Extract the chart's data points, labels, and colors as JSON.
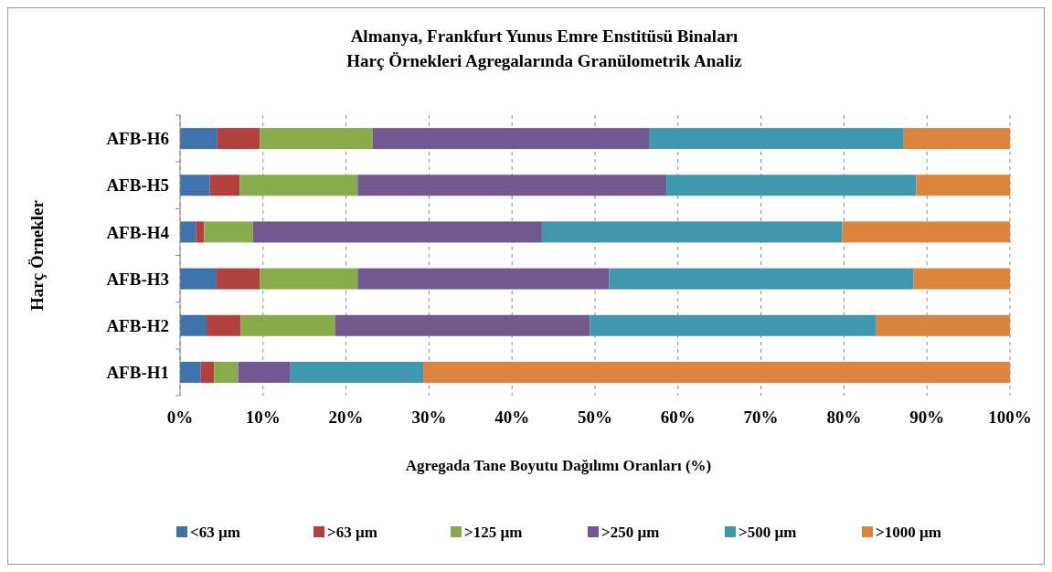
{
  "chart_data": {
    "type": "bar",
    "orientation": "horizontal",
    "stacked": true,
    "title": "Almanya, Frankfurt Yunus Emre Enstitüsü Binaları\nHarç Örnekleri Agregalarında Granülometrik Analiz",
    "xlabel": "Agregada Tane Boyutu Dağılımı  Oranları (%)",
    "ylabel": "Harç Örnekler",
    "categories": [
      "AFB-H6",
      "AFB-H5",
      "AFB-H4",
      "AFB-H3",
      "AFB-H2",
      "AFB-H1"
    ],
    "xlim": [
      0,
      100
    ],
    "xticks": [
      {
        "value": 0,
        "label": "0%"
      },
      {
        "value": 10,
        "label": "10%"
      },
      {
        "value": 20,
        "label": "20%"
      },
      {
        "value": 30,
        "label": "30%"
      },
      {
        "value": 40,
        "label": "40%"
      },
      {
        "value": 50,
        "label": "50%"
      },
      {
        "value": 60,
        "label": "60%"
      },
      {
        "value": 70,
        "label": "70%"
      },
      {
        "value": 80,
        "label": "80%"
      },
      {
        "value": 90,
        "label": "90%"
      },
      {
        "value": 100,
        "label": "100%"
      }
    ],
    "grid": "x",
    "legend": "bottom",
    "series": [
      {
        "name": "<63 µm",
        "color": "#3f72ab",
        "values": [
          4.5,
          3.6,
          1.9,
          4.4,
          3.2,
          2.5
        ]
      },
      {
        "name": ">63 µm",
        "color": "#b0413e",
        "values": [
          5.1,
          3.6,
          1.0,
          5.2,
          4.1,
          1.6
        ]
      },
      {
        "name": ">125 µm",
        "color": "#8aab4c",
        "values": [
          13.6,
          14.2,
          5.9,
          11.8,
          11.4,
          2.9
        ]
      },
      {
        "name": ">250 µm",
        "color": "#71588f",
        "values": [
          33.3,
          37.2,
          34.8,
          30.3,
          30.7,
          6.3
        ]
      },
      {
        "name": ">500 µm",
        "color": "#4197ae",
        "values": [
          30.7,
          30.1,
          36.2,
          36.7,
          34.5,
          16.0
        ]
      },
      {
        "name": ">1000 µm",
        "color": "#db843d",
        "values": [
          12.8,
          11.3,
          20.2,
          11.6,
          16.1,
          70.7
        ]
      }
    ]
  }
}
